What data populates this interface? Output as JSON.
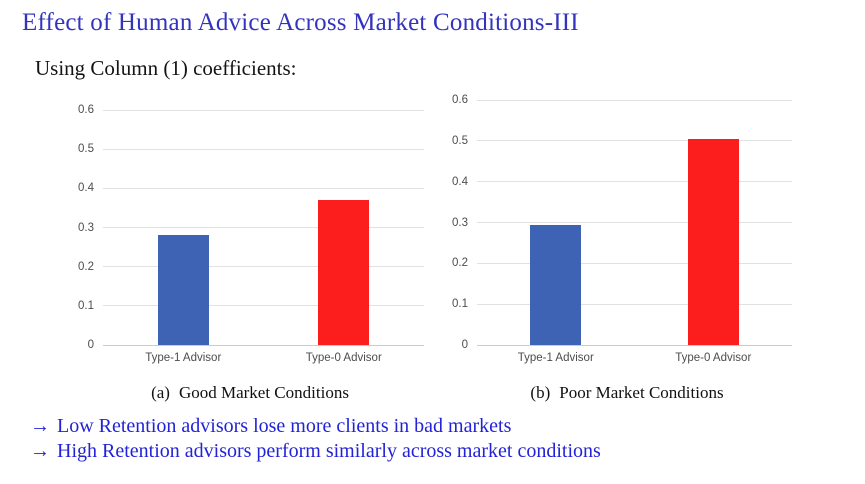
{
  "title": "Effect of Human Advice Across Market Conditions-III",
  "subtitle": "Using Column (1) coefficients:",
  "chart_data": [
    {
      "type": "bar",
      "caption": {
        "label": "(a)",
        "text": "Good Market Conditions"
      },
      "categories": [
        "Type-1 Advisor",
        "Type-0 Advisor"
      ],
      "values": [
        0.282,
        0.37
      ],
      "bar_colors": [
        "#3e63b5",
        "#fc1d1d"
      ],
      "title": "",
      "xlabel": "",
      "ylabel": "",
      "ylim": [
        0,
        0.6
      ],
      "yticks": [
        "0",
        "0.1",
        "0.2",
        "0.3",
        "0.4",
        "0.5",
        "0.6"
      ],
      "grid": true,
      "legend": "none"
    },
    {
      "type": "bar",
      "caption": {
        "label": "(b)",
        "text": "Poor Market Conditions"
      },
      "categories": [
        "Type-1 Advisor",
        "Type-0 Advisor"
      ],
      "values": [
        0.295,
        0.505
      ],
      "bar_colors": [
        "#3e63b5",
        "#fc1d1d"
      ],
      "title": "",
      "xlabel": "",
      "ylabel": "",
      "ylim": [
        0,
        0.6
      ],
      "yticks": [
        "0",
        "0.1",
        "0.2",
        "0.3",
        "0.4",
        "0.5",
        "0.6"
      ],
      "grid": true,
      "legend": "none"
    }
  ],
  "notes": {
    "arrow": "→",
    "lines": [
      "Low Retention advisors lose more clients in bad markets",
      "High Retention advisors perform similarly across market conditions"
    ]
  },
  "colors": {
    "title_blue": "#3333be",
    "notes_blue": "#2222d8",
    "bar_blue": "#3e63b5",
    "bar_red": "#fc1d1d",
    "gridline": "#e2e2e2",
    "axis_text": "#4d4d4d"
  }
}
